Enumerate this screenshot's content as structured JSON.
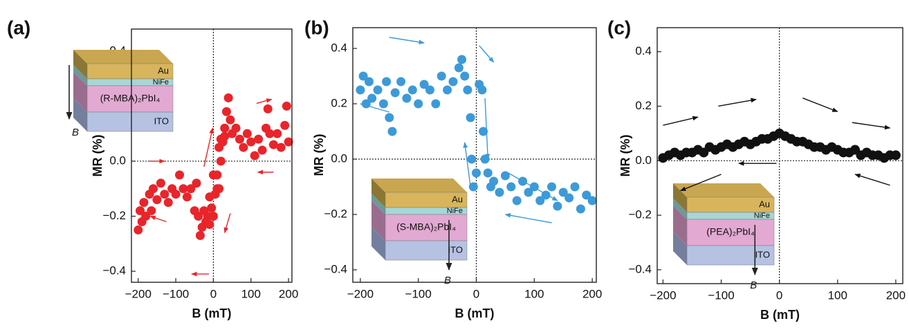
{
  "chart_data": [
    {
      "type": "scatter",
      "panel_label": "(a)",
      "ylabel": "MR (%)",
      "xlabel": "B (mT)",
      "inset_layers": [
        "Au",
        "NiFe",
        "(R-MBA)₂PbI₄",
        "ITO"
      ],
      "inset_field": "B",
      "xlim": [
        -218,
        209
      ],
      "ylim": [
        -0.44,
        0.48
      ],
      "xticks": [
        {
          "value": -200,
          "label": "−200"
        },
        {
          "value": -100,
          "label": "−100"
        },
        0,
        100,
        200
      ],
      "yticks": [
        {
          "value": -0.4,
          "label": "−0.4"
        },
        {
          "value": -0.2,
          "label": "−0.2"
        },
        {
          "value": 0,
          "label": "0.0"
        },
        0.2,
        0.4
      ],
      "color": "#e8252a",
      "x": [
        -200,
        -195,
        -190,
        -185,
        -180,
        -170,
        -165,
        -160,
        -150,
        -140,
        -130,
        -120,
        -110,
        -100,
        -90,
        -80,
        -70,
        -60,
        -50,
        -45,
        -40,
        -35,
        -30,
        -25,
        -20,
        -15,
        -10,
        -5,
        0,
        5,
        10,
        15,
        20,
        25,
        30,
        35,
        40,
        45,
        50,
        60,
        70,
        80,
        90,
        100,
        110,
        120,
        130,
        140,
        145,
        150,
        160,
        170,
        180,
        190,
        195,
        200,
        30,
        20,
        10,
        0,
        -10,
        15
      ],
      "values": [
        -0.25,
        -0.18,
        -0.22,
        -0.15,
        -0.2,
        -0.12,
        -0.18,
        -0.1,
        -0.14,
        -0.08,
        -0.12,
        -0.15,
        -0.1,
        -0.12,
        -0.05,
        -0.1,
        -0.13,
        -0.1,
        -0.18,
        -0.08,
        -0.2,
        -0.27,
        -0.24,
        -0.18,
        -0.22,
        -0.2,
        -0.23,
        -0.17,
        -0.2,
        -0.12,
        -0.05,
        0.05,
        0,
        0.07,
        0.12,
        0.18,
        0.23,
        0.15,
        0.1,
        0.12,
        0.08,
        0.05,
        0.1,
        0.07,
        0.02,
        0.08,
        0.04,
        0.12,
        0.19,
        0.1,
        0.06,
        0.1,
        0.05,
        0.13,
        0.2,
        0.07,
        0.09,
        0.08,
        -0.1,
        -0.05,
        -0.13,
        -0.1
      ]
    },
    {
      "type": "scatter",
      "panel_label": "(b)",
      "ylabel": "MR (%)",
      "xlabel": "B (mT)",
      "inset_layers": [
        "Au",
        "NiFe",
        "(S-MBA)₂PbI₄",
        "ITO"
      ],
      "inset_field": "B",
      "xlim": [
        -213,
        207
      ],
      "ylim": [
        -0.445,
        0.475
      ],
      "xticks": [
        {
          "value": -200,
          "label": "−200"
        },
        {
          "value": -100,
          "label": "−100"
        },
        0,
        100,
        200
      ],
      "yticks": [
        {
          "value": -0.4,
          "label": "−0.4"
        },
        {
          "value": -0.2,
          "label": "−0.2"
        },
        {
          "value": 0,
          "label": "0.0"
        },
        0.2,
        0.4
      ],
      "color": "#3d9ad8",
      "x": [
        -200,
        -195,
        -190,
        -185,
        -180,
        -170,
        -160,
        -155,
        -150,
        -145,
        -140,
        -130,
        -120,
        -110,
        -100,
        -90,
        -80,
        -70,
        -60,
        -50,
        -40,
        -30,
        -25,
        -20,
        -15,
        -10,
        -8,
        -5,
        0,
        5,
        10,
        12,
        15,
        20,
        25,
        30,
        40,
        50,
        60,
        70,
        80,
        90,
        100,
        110,
        120,
        130,
        140,
        150,
        160,
        170,
        180,
        190,
        200
      ],
      "values": [
        0.25,
        0.3,
        0.2,
        0.28,
        0.22,
        0.25,
        0.2,
        0.28,
        0.15,
        0.1,
        0.24,
        0.28,
        0.22,
        0.25,
        0.2,
        0.27,
        0.25,
        0.2,
        0.3,
        0.25,
        0.28,
        0.33,
        0.36,
        0.3,
        0.25,
        0.15,
        0,
        -0.1,
        -0.05,
        0.27,
        0.25,
        0.1,
        0,
        -0.05,
        -0.1,
        -0.08,
        -0.12,
        -0.06,
        -0.1,
        -0.15,
        -0.08,
        -0.12,
        -0.1,
        -0.15,
        -0.13,
        -0.1,
        -0.17,
        -0.12,
        -0.14,
        -0.1,
        -0.18,
        -0.13,
        -0.15
      ]
    },
    {
      "type": "scatter",
      "panel_label": "(c)",
      "ylabel": "MR (%)",
      "xlabel": "B (mT)",
      "inset_layers": [
        "Au",
        "NiFe",
        "(PEA)₂PbI₄",
        "ITO"
      ],
      "inset_field": "B",
      "xlim": [
        -210,
        212
      ],
      "ylim": [
        -0.451,
        0.488
      ],
      "xticks": [
        {
          "value": -200,
          "label": "−200"
        },
        {
          "value": -100,
          "label": "−100"
        },
        0,
        100,
        200
      ],
      "yticks": [
        {
          "value": -0.4,
          "label": "−0.4"
        },
        {
          "value": -0.2,
          "label": "−0.2"
        },
        {
          "value": 0,
          "label": "0.0"
        },
        0.2,
        0.4
      ],
      "color": "#111111",
      "x": [
        -200,
        -190,
        -180,
        -170,
        -160,
        -150,
        -140,
        -130,
        -120,
        -110,
        -100,
        -90,
        -80,
        -70,
        -60,
        -50,
        -40,
        -30,
        -20,
        -10,
        0,
        10,
        20,
        30,
        40,
        50,
        60,
        70,
        80,
        90,
        100,
        110,
        120,
        130,
        140,
        150,
        160,
        170,
        180,
        190,
        200
      ],
      "values": [
        0.01,
        0.02,
        0.03,
        0.02,
        0.03,
        0.03,
        0.04,
        0.03,
        0.05,
        0.04,
        0.05,
        0.06,
        0.05,
        0.06,
        0.07,
        0.06,
        0.07,
        0.08,
        0.08,
        0.09,
        0.1,
        0.09,
        0.08,
        0.07,
        0.07,
        0.06,
        0.05,
        0.05,
        0.04,
        0.05,
        0.04,
        0.03,
        0.03,
        0.04,
        0.02,
        0.03,
        0.02,
        0.02,
        0.01,
        0.02,
        0.02
      ]
    }
  ]
}
